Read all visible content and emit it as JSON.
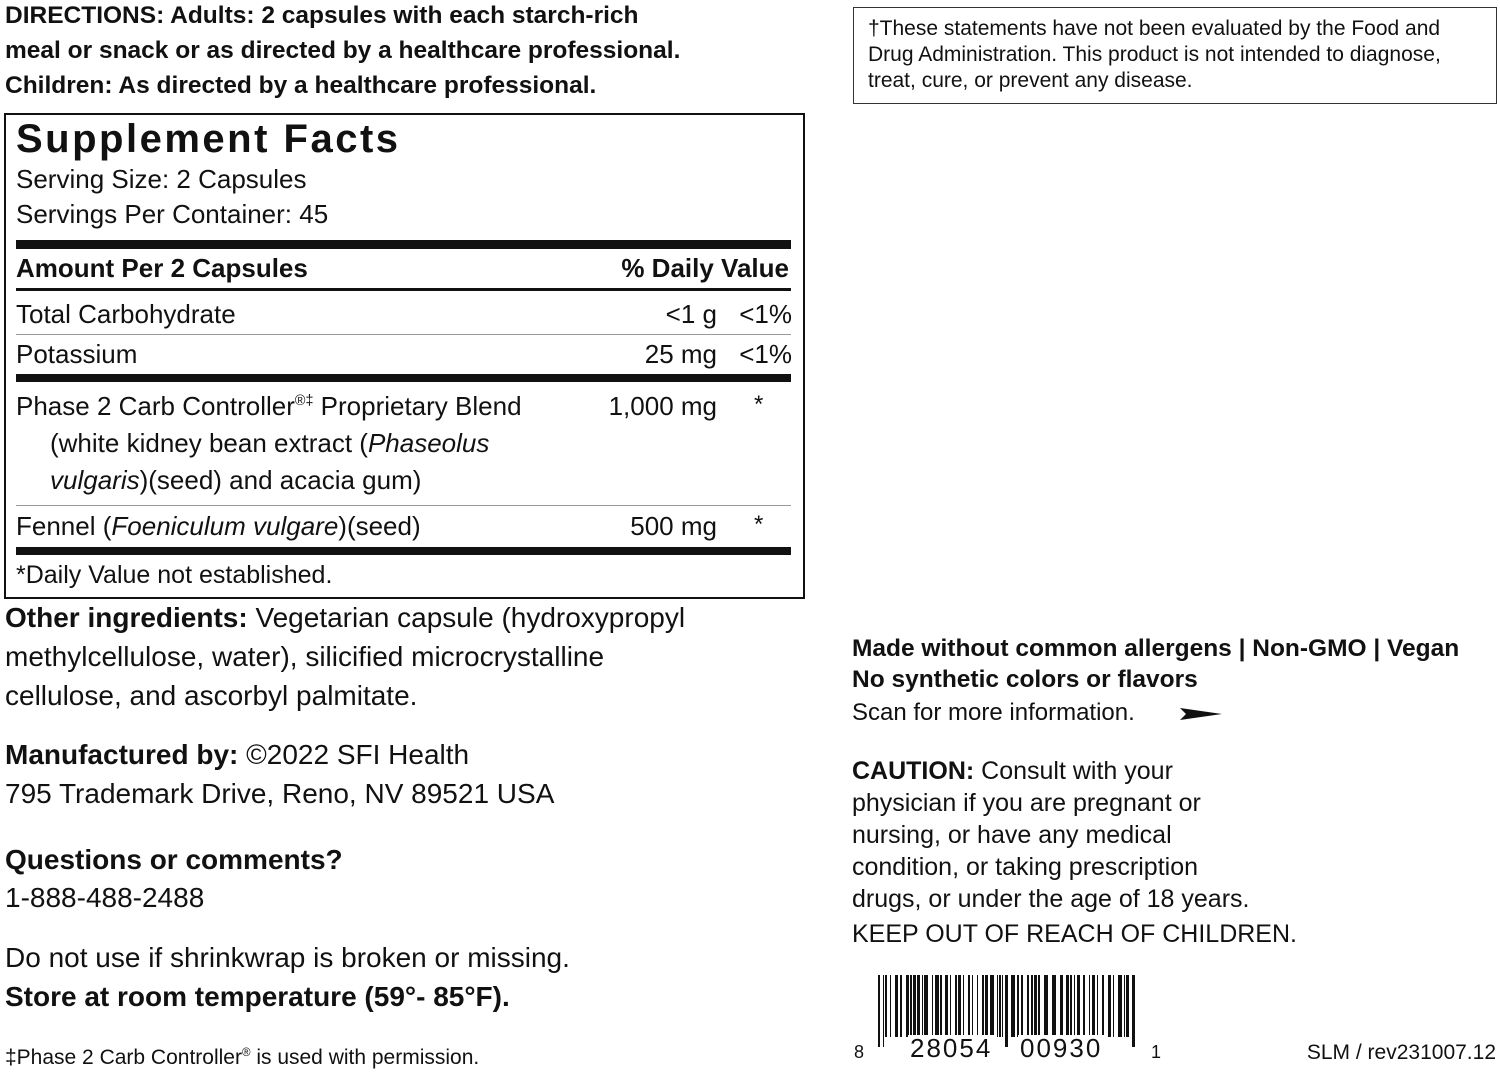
{
  "directions": {
    "lines": [
      "DIRECTIONS: Adults: 2 capsules with each starch-rich",
      "meal or snack or as directed by a healthcare professional.",
      "Children: As directed by a healthcare professional."
    ]
  },
  "supplement_facts": {
    "title": "Supplement Facts",
    "serving_size": "Serving Size: 2 Capsules",
    "servings_per_container": "Servings Per Container: 45",
    "header": {
      "amount": "Amount Per 2 Capsules",
      "daily_value": "% Daily Value"
    },
    "rows": [
      {
        "name": "Total Carbohydrate",
        "amount": "<1 g",
        "dv": "<1%"
      },
      {
        "name": "Potassium",
        "amount": "25 mg",
        "dv": "<1%"
      }
    ],
    "blend": {
      "name": "Phase 2 Carb Controller",
      "mark": "®‡",
      "name_rest": " Proprietary Blend",
      "amount": "1,000 mg",
      "dv": "*",
      "detail_start": "(white kidney bean extract (",
      "latin_1": "Phaseolus",
      "latin_2": "vulgaris",
      "detail_end": ")(seed) and acacia gum)"
    },
    "fennel": {
      "name_start": "Fennel (",
      "latin": "Foeniculum vulgare",
      "name_end": ")(seed)",
      "amount": "500 mg",
      "dv": "*"
    },
    "footnote": "*Daily Value not established."
  },
  "other_ingredients": {
    "label": "Other ingredients:",
    "lines": [
      " Vegetarian capsule (hydroxypropyl",
      "methylcellulose, water), silicified microcrystalline",
      "cellulose, and ascorbyl palmitate."
    ]
  },
  "manufacturer": {
    "label": "Manufactured by:",
    "text": " ©2022 SFI Health",
    "address": "795 Trademark Drive, Reno, NV 89521 USA"
  },
  "questions": {
    "label": "Questions or comments?",
    "phone": "1-888-488-2488"
  },
  "warning": "Do not use if shrinkwrap is broken or missing.",
  "storage": "Store at room temperature (59°- 85°F).",
  "trademark_note": {
    "start": "‡Phase 2 Carb Controller",
    "mark": "®",
    "end": " is used with permission."
  },
  "disclaimer": {
    "lines": [
      "†These statements have not been evaluated by the Food and",
      "Drug Administration. This product is not intended to diagnose,",
      "treat, cure, or prevent any disease."
    ]
  },
  "claims": {
    "lines": [
      "Made without common allergens | Non-GMO | Vegan",
      "No synthetic colors or flavors"
    ],
    "scan": "Scan for more information."
  },
  "caution": {
    "label": "CAUTION:",
    "lines": [
      " Consult with your",
      "physician if you are pregnant or",
      "nursing, or have any medical",
      "condition, or taking prescription",
      "drugs, or under the age of 18 years."
    ],
    "keep_out": "KEEP OUT OF REACH OF CHILDREN."
  },
  "barcode": {
    "digits": [
      "8",
      "28054",
      "00930",
      "1"
    ]
  },
  "revision": "SLM / rev231007.12"
}
